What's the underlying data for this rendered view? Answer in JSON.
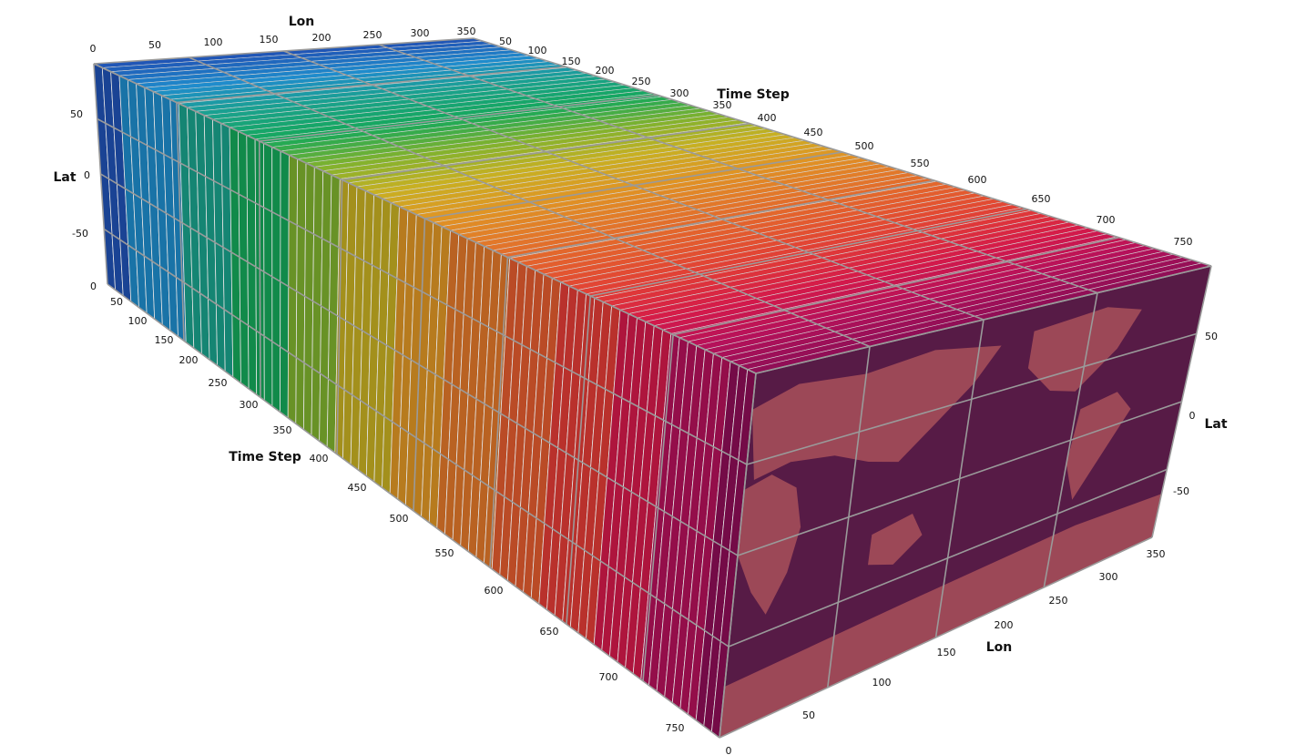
{
  "scene": {
    "colors": {
      "background": "#ffffff",
      "gridline": "#9a9a9a",
      "face_tint": "#8a0e52",
      "land": "#b9735e",
      "ocean": "#3d2340"
    },
    "time_colors": [
      "#2052b4",
      "#1f8ccc",
      "#1aa28c",
      "#15a85a",
      "#7fb22e",
      "#c7b022",
      "#df9624",
      "#e2782a",
      "#e35c2e",
      "#e13c36",
      "#d41a4a",
      "#b5115a",
      "#8e0e56"
    ],
    "top_axes": {
      "lon": {
        "title": "Lon",
        "ticks": [
          "0",
          "50",
          "100",
          "150",
          "200",
          "250",
          "300",
          "350"
        ]
      },
      "time_step": {
        "title": "Time Step",
        "ticks": [
          "50",
          "100",
          "150",
          "200",
          "250",
          "300",
          "350",
          "400",
          "450",
          "500",
          "550",
          "600",
          "650",
          "700",
          "750"
        ]
      },
      "lat": {
        "title": "Lat",
        "ticks": [
          "50",
          "0",
          "-50",
          "0"
        ]
      }
    },
    "bottom_axes": {
      "time_step": {
        "title": "Time Step",
        "ticks": [
          "50",
          "100",
          "150",
          "200",
          "250",
          "300",
          "350",
          "400",
          "450",
          "500",
          "550",
          "600",
          "650",
          "700",
          "750"
        ]
      },
      "lon": {
        "title": "Lon",
        "ticks": [
          "0",
          "50",
          "100",
          "150",
          "200",
          "250",
          "300",
          "350"
        ]
      }
    },
    "front_axes": {
      "lat": {
        "title": "Lat",
        "ticks": [
          "50",
          "0",
          "-50"
        ]
      }
    }
  }
}
